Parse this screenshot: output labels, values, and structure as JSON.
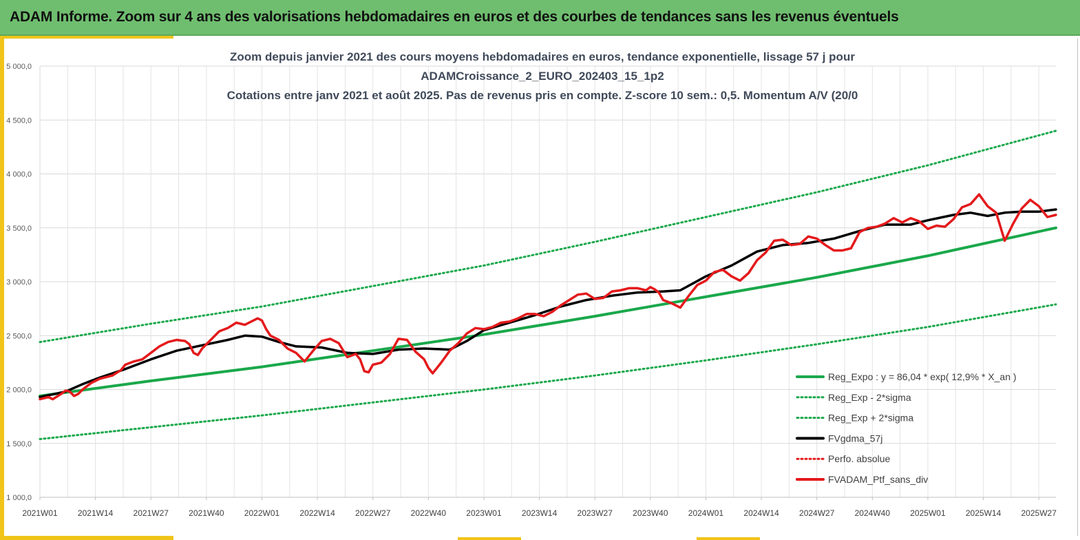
{
  "page": {
    "banner_title": "ADAM Informe. Zoom sur 4 ans des valorisations hebdomadaires en euros et des courbes de tendances sans les revenus éventuels",
    "colors": {
      "banner": "#6fbe6f",
      "accent": "#f0c419"
    }
  },
  "chart_data": {
    "type": "line",
    "title_lines": [
      "Zoom depuis janvier 2021 des cours moyens hebdomadaires  en euros, tendance exponentielle, lissage 57 j pour",
      "ADAMCroissance_2_EURO_202403_15_1p2",
      "Cotations entre janv 2021 et août 2025. Pas de revenus pris en compte. Z-score 10 sem.: 0,5. Momentum A/V (20/0"
    ],
    "xlabel": "",
    "ylabel": "",
    "ylim": [
      1000,
      5000
    ],
    "yticks": [
      "1 000,0",
      "1 500,0",
      "2 000,0",
      "2 500,0",
      "3 000,0",
      "3 500,0",
      "4 000,0",
      "4 500,0",
      "5 000,0"
    ],
    "ytick_values": [
      1000,
      1500,
      2000,
      2500,
      3000,
      3500,
      4000,
      4500,
      5000
    ],
    "x_categories_labeled": [
      "2021W01",
      "2021W14",
      "2021W27",
      "2021W40",
      "2022W01",
      "2022W14",
      "2022W27",
      "2022W40",
      "2023W01",
      "2023W14",
      "2023W27",
      "2023W40",
      "2024W01",
      "2024W14",
      "2024W27",
      "2024W40",
      "2025W01",
      "2025W14",
      "2025W27"
    ],
    "x_label_week_index": [
      0,
      13,
      26,
      39,
      52,
      65,
      78,
      91,
      104,
      117,
      130,
      143,
      156,
      169,
      182,
      195,
      208,
      221,
      234
    ],
    "x_range_weeks": [
      0,
      238
    ],
    "grid": true,
    "legend_position": "bottom-right",
    "series": [
      {
        "name": "Reg_Expo : y = 86,04 * exp( 12,9% *  X_an )",
        "color": "#1aa84b",
        "style": "solid",
        "width": 4,
        "x": [
          0,
          26,
          52,
          78,
          104,
          130,
          156,
          182,
          208,
          238
        ],
        "y": [
          1940,
          2080,
          2210,
          2360,
          2510,
          2680,
          2860,
          3040,
          3240,
          3500
        ]
      },
      {
        "name": "Reg_Exp - 2*sigma",
        "color": "#1aa84b",
        "style": "dotted",
        "width": 3,
        "x": [
          0,
          26,
          52,
          78,
          104,
          130,
          156,
          182,
          208,
          238
        ],
        "y": [
          1540,
          1650,
          1760,
          1880,
          2000,
          2130,
          2270,
          2420,
          2580,
          2790
        ]
      },
      {
        "name": "Reg_Exp + 2*sigma",
        "color": "#1aa84b",
        "style": "dotted",
        "width": 3,
        "x": [
          0,
          26,
          52,
          78,
          104,
          130,
          156,
          182,
          208,
          238
        ],
        "y": [
          2440,
          2610,
          2770,
          2960,
          3150,
          3370,
          3600,
          3830,
          4080,
          4400
        ]
      },
      {
        "name": "FVgdma_57j",
        "color": "#000000",
        "style": "solid",
        "width": 3.5,
        "x": [
          0,
          6,
          10,
          14,
          20,
          26,
          32,
          38,
          44,
          48,
          52,
          56,
          60,
          66,
          72,
          78,
          84,
          90,
          96,
          100,
          104,
          110,
          116,
          122,
          128,
          134,
          140,
          146,
          150,
          156,
          162,
          168,
          174,
          180,
          186,
          192,
          198,
          204,
          208,
          214,
          218,
          222,
          226,
          230,
          234,
          238
        ],
        "y": [
          1930,
          1980,
          2050,
          2110,
          2190,
          2280,
          2360,
          2410,
          2460,
          2500,
          2490,
          2440,
          2400,
          2390,
          2340,
          2330,
          2370,
          2380,
          2370,
          2450,
          2550,
          2620,
          2690,
          2770,
          2830,
          2870,
          2900,
          2910,
          2920,
          3050,
          3150,
          3280,
          3340,
          3360,
          3400,
          3470,
          3530,
          3530,
          3570,
          3620,
          3640,
          3610,
          3640,
          3650,
          3650,
          3670
        ]
      },
      {
        "name": "Perfo. absolue",
        "color": "#e41a1c",
        "style": "dotted",
        "width": 3,
        "x": [],
        "y": []
      },
      {
        "name": "FVADAM_Ptf_sans_div",
        "color": "#e41a1c",
        "style": "solid",
        "width": 3.5,
        "x": [
          0,
          2,
          3,
          5,
          6,
          7,
          8,
          9,
          10,
          11,
          12,
          13,
          14,
          15,
          17,
          19,
          20,
          22,
          24,
          26,
          28,
          30,
          32,
          34,
          35,
          36,
          37,
          38,
          40,
          42,
          44,
          46,
          48,
          50,
          51,
          52,
          53,
          54,
          55,
          56,
          58,
          60,
          62,
          64,
          66,
          68,
          70,
          72,
          74,
          75,
          76,
          77,
          78,
          80,
          82,
          84,
          86,
          88,
          90,
          91,
          92,
          94,
          96,
          98,
          100,
          102,
          104,
          106,
          108,
          110,
          112,
          114,
          116,
          118,
          120,
          122,
          124,
          126,
          128,
          130,
          132,
          134,
          136,
          138,
          140,
          142,
          143,
          144,
          145,
          146,
          148,
          150,
          152,
          154,
          156,
          158,
          160,
          162,
          164,
          166,
          168,
          170,
          172,
          174,
          176,
          178,
          180,
          182,
          184,
          186,
          188,
          190,
          192,
          194,
          196,
          198,
          200,
          202,
          204,
          206,
          208,
          210,
          212,
          214,
          216,
          218,
          220,
          222,
          224,
          226,
          228,
          230,
          232,
          234,
          236,
          238
        ],
        "y": [
          1910,
          1930,
          1910,
          1960,
          1990,
          1980,
          1940,
          1960,
          2000,
          2030,
          2060,
          2080,
          2100,
          2110,
          2130,
          2180,
          2230,
          2260,
          2280,
          2340,
          2400,
          2440,
          2460,
          2450,
          2420,
          2340,
          2320,
          2380,
          2460,
          2540,
          2570,
          2620,
          2600,
          2640,
          2660,
          2640,
          2560,
          2500,
          2480,
          2460,
          2380,
          2340,
          2260,
          2360,
          2450,
          2470,
          2430,
          2300,
          2330,
          2280,
          2170,
          2160,
          2230,
          2250,
          2330,
          2470,
          2460,
          2350,
          2280,
          2200,
          2150,
          2250,
          2360,
          2430,
          2520,
          2570,
          2560,
          2580,
          2620,
          2630,
          2660,
          2700,
          2700,
          2680,
          2720,
          2780,
          2830,
          2880,
          2890,
          2840,
          2850,
          2910,
          2920,
          2940,
          2940,
          2920,
          2950,
          2930,
          2900,
          2830,
          2800,
          2760,
          2870,
          2970,
          3010,
          3090,
          3110,
          3050,
          3010,
          3080,
          3200,
          3270,
          3380,
          3390,
          3340,
          3350,
          3420,
          3400,
          3340,
          3290,
          3290,
          3310,
          3460,
          3500,
          3510,
          3540,
          3590,
          3550,
          3590,
          3560,
          3490,
          3520,
          3510,
          3580,
          3690,
          3720,
          3810,
          3700,
          3640,
          3380,
          3540,
          3680,
          3760,
          3700,
          3600,
          3620
        ]
      }
    ]
  }
}
